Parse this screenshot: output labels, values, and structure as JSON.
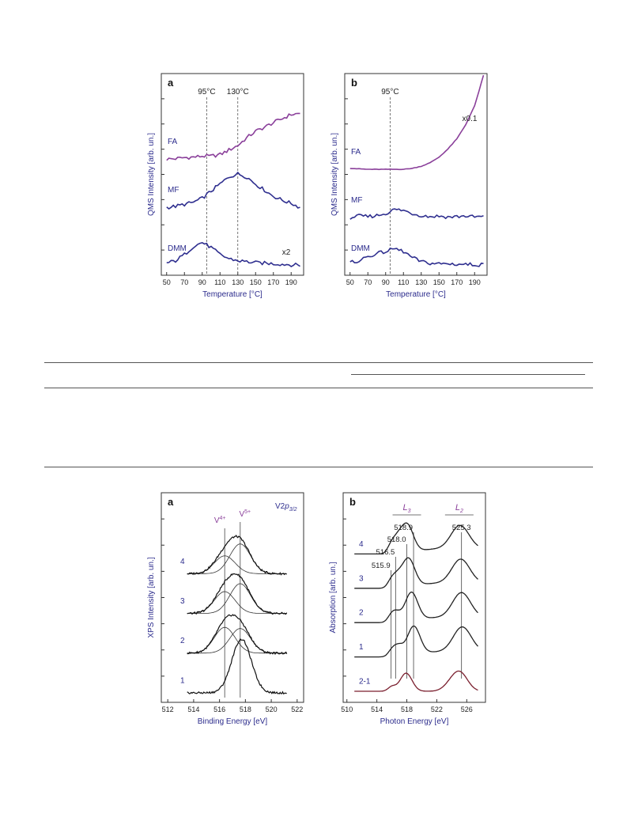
{
  "colors": {
    "purple": "#8a3f9a",
    "navy": "#2f2f8f",
    "black": "#222222",
    "maroon": "#7a1f2e",
    "axis_text_blue": "#2b2b8c"
  },
  "chart_data": [
    {
      "type": "line",
      "panel_label": "a",
      "xlabel": "Temperature [°C]",
      "ylabel": "QMS Intensity [arb. un.]",
      "xlim": [
        44,
        204
      ],
      "xticks": [
        50,
        70,
        90,
        110,
        130,
        150,
        170,
        190
      ],
      "annotations": [
        {
          "text": "95°C",
          "x": 95
        },
        {
          "text": "130°C",
          "x": 130
        },
        {
          "text": "x2",
          "series": "DMM"
        }
      ],
      "series": [
        {
          "name": "FA",
          "color": "purple",
          "offset": 2.1,
          "x": [
            50,
            60,
            70,
            80,
            90,
            100,
            110,
            120,
            130,
            140,
            150,
            160,
            170,
            180,
            190,
            200
          ],
          "y": [
            0.0,
            0.01,
            0.03,
            0.04,
            0.06,
            0.06,
            0.09,
            0.18,
            0.27,
            0.42,
            0.55,
            0.63,
            0.72,
            0.8,
            0.88,
            0.9
          ]
        },
        {
          "name": "MF",
          "color": "navy",
          "offset": 1.15,
          "x": [
            50,
            60,
            70,
            80,
            90,
            100,
            110,
            120,
            130,
            140,
            150,
            160,
            170,
            180,
            190,
            200
          ],
          "y": [
            0.0,
            0.02,
            0.06,
            0.1,
            0.18,
            0.32,
            0.46,
            0.6,
            0.66,
            0.6,
            0.46,
            0.34,
            0.22,
            0.14,
            0.08,
            0.0
          ]
        },
        {
          "name": "DMM",
          "color": "navy",
          "offset": 0.0,
          "x": [
            50,
            60,
            70,
            80,
            90,
            100,
            110,
            120,
            130,
            140,
            150,
            160,
            170,
            180,
            190,
            200
          ],
          "y": [
            0.05,
            0.1,
            0.22,
            0.38,
            0.46,
            0.36,
            0.22,
            0.14,
            0.1,
            0.08,
            0.06,
            0.05,
            0.04,
            0.03,
            0.02,
            0.01
          ]
        }
      ]
    },
    {
      "type": "line",
      "panel_label": "b",
      "xlabel": "Temperature [°C]",
      "ylabel": "QMS Intensity [arb. un.]",
      "xlim": [
        44,
        204
      ],
      "xticks": [
        50,
        70,
        90,
        110,
        130,
        150,
        170,
        190
      ],
      "annotations": [
        {
          "text": "95°C",
          "x": 95
        },
        {
          "text": "x0.1",
          "series": "FA"
        }
      ],
      "series": [
        {
          "name": "FA",
          "color": "purple",
          "offset": 1.9,
          "x": [
            50,
            70,
            90,
            110,
            120,
            130,
            140,
            150,
            160,
            170,
            180,
            190,
            200
          ],
          "y": [
            0.02,
            0.0,
            0.0,
            0.0,
            0.02,
            0.06,
            0.13,
            0.24,
            0.4,
            0.6,
            0.88,
            1.25,
            1.85
          ]
        },
        {
          "name": "MF",
          "color": "navy",
          "offset": 0.95,
          "x": [
            50,
            60,
            70,
            80,
            90,
            100,
            110,
            120,
            130,
            140,
            150,
            160,
            170,
            180,
            190,
            200
          ],
          "y": [
            0.0,
            0.03,
            0.02,
            0.04,
            0.08,
            0.16,
            0.14,
            0.08,
            0.04,
            0.02,
            0.03,
            0.01,
            0.02,
            0.03,
            0.01,
            0.02
          ]
        },
        {
          "name": "DMM",
          "color": "navy",
          "offset": 0.0,
          "x": [
            50,
            60,
            70,
            80,
            90,
            100,
            110,
            120,
            130,
            140,
            150,
            160,
            170,
            180,
            190,
            200
          ],
          "y": [
            0.06,
            0.1,
            0.18,
            0.24,
            0.28,
            0.34,
            0.28,
            0.16,
            0.08,
            0.05,
            0.04,
            0.04,
            0.03,
            0.03,
            0.02,
            0.02
          ]
        }
      ]
    },
    {
      "type": "line",
      "panel_label": "a",
      "panel_note": "V2p3/2",
      "xlabel": "Binding Energy [eV]",
      "ylabel": "XPS Intensity [arb. un.]",
      "xlim": [
        511.5,
        522.5
      ],
      "xticks": [
        512,
        514,
        516,
        518,
        520,
        522
      ],
      "markers": [
        {
          "label": "V4+",
          "x": 516.4
        },
        {
          "label": "V5+",
          "x": 517.6
        }
      ],
      "series": [
        {
          "name": "4",
          "offset": 3.0,
          "components": [
            {
              "center": 516.4,
              "height": 0.45,
              "width": 0.8
            },
            {
              "center": 517.6,
              "height": 0.75,
              "width": 0.8
            }
          ]
        },
        {
          "name": "3",
          "offset": 2.0,
          "components": [
            {
              "center": 516.4,
              "height": 0.55,
              "width": 0.8
            },
            {
              "center": 517.6,
              "height": 0.75,
              "width": 0.8
            }
          ]
        },
        {
          "name": "2",
          "offset": 1.0,
          "components": [
            {
              "center": 516.4,
              "height": 0.65,
              "width": 0.8
            },
            {
              "center": 517.6,
              "height": 0.62,
              "width": 0.8
            }
          ]
        },
        {
          "name": "1",
          "offset": 0.0,
          "components": [
            {
              "center": 517.7,
              "height": 1.35,
              "width": 0.75
            }
          ]
        }
      ]
    },
    {
      "type": "line",
      "panel_label": "b",
      "xlabel": "Photon Energy [eV]",
      "ylabel": "Absorption [arb. un.]",
      "xlim": [
        509.5,
        528.5
      ],
      "xticks": [
        510,
        514,
        518,
        522,
        526
      ],
      "edge_labels": [
        {
          "text": "L",
          "sub": "3",
          "x": 518
        },
        {
          "text": "L",
          "sub": "2",
          "x": 525
        }
      ],
      "markers": [
        {
          "label": "515.9",
          "x": 515.9
        },
        {
          "label": "516.5",
          "x": 516.5
        },
        {
          "label": "518.0",
          "x": 518.0
        },
        {
          "label": "518.9",
          "x": 518.9
        },
        {
          "label": "525.3",
          "x": 525.3
        }
      ],
      "series": [
        {
          "name": "4",
          "offset": 3.0,
          "color": "black",
          "peaks": [
            [
              515.9,
              0.25,
              0.5
            ],
            [
              516.7,
              0.35,
              0.6
            ],
            [
              518.0,
              1.0,
              0.85
            ],
            [
              525.1,
              0.8,
              1.2
            ]
          ]
        },
        {
          "name": "3",
          "offset": 2.0,
          "color": "black",
          "peaks": [
            [
              515.9,
              0.22,
              0.5
            ],
            [
              516.7,
              0.33,
              0.6
            ],
            [
              518.2,
              1.0,
              0.85
            ],
            [
              525.2,
              0.82,
              1.2
            ]
          ]
        },
        {
          "name": "2",
          "offset": 1.0,
          "color": "black",
          "peaks": [
            [
              515.9,
              0.18,
              0.5
            ],
            [
              516.6,
              0.3,
              0.6
            ],
            [
              518.6,
              1.0,
              0.85
            ],
            [
              525.3,
              0.85,
              1.2
            ]
          ]
        },
        {
          "name": "1",
          "offset": 0.0,
          "color": "black",
          "peaks": [
            [
              516.0,
              0.2,
              0.5
            ],
            [
              516.9,
              0.35,
              0.6
            ],
            [
              518.9,
              1.0,
              0.85
            ],
            [
              525.4,
              0.85,
              1.2
            ]
          ]
        },
        {
          "name": "2-1",
          "offset": -1.0,
          "color": "maroon",
          "peaks": [
            [
              516.0,
              0.15,
              0.5
            ],
            [
              517.9,
              0.62,
              0.8
            ],
            [
              524.0,
              0.25,
              1.0
            ],
            [
              525.2,
              0.55,
              1.0
            ]
          ]
        }
      ]
    }
  ]
}
